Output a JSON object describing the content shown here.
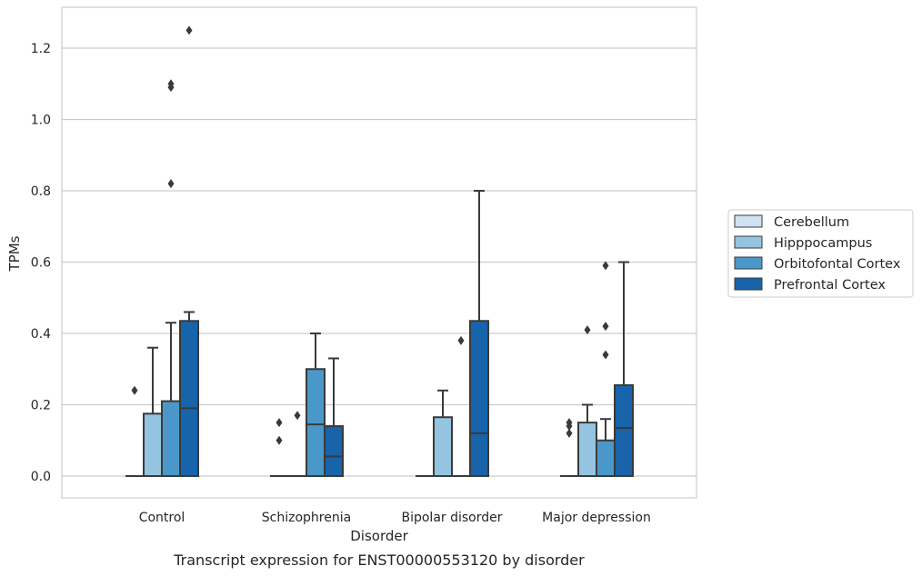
{
  "caption": "Transcript expression for ENST00000553120 by disorder",
  "chart_data": {
    "type": "box",
    "title": "",
    "xlabel": "Disorder",
    "ylabel": "TPMs",
    "ylim": [
      -0.06,
      1.32
    ],
    "yticks": [
      0.0,
      0.2,
      0.4,
      0.6,
      0.8,
      1.0,
      1.2
    ],
    "ytick_labels": [
      "0.0",
      "0.2",
      "0.4",
      "0.6",
      "0.8",
      "1.0",
      "1.2"
    ],
    "grid": "horizontal",
    "legend_position": "right",
    "categories": [
      "Control",
      "Schizophrenia",
      "Bipolar disorder",
      "Major depression"
    ],
    "series": [
      {
        "name": "Cerebellum",
        "color": "#d0e1f2",
        "boxes": [
          {
            "whislo": 0.0,
            "q1": 0.0,
            "med": 0.0,
            "q3": 0.0,
            "whishi": 0.0,
            "fliers": [
              0.24
            ]
          },
          {
            "whislo": 0.0,
            "q1": 0.0,
            "med": 0.0,
            "q3": 0.0,
            "whishi": 0.0,
            "fliers": [
              0.1,
              0.15
            ]
          },
          {
            "whislo": 0.0,
            "q1": 0.0,
            "med": 0.0,
            "q3": 0.0,
            "whishi": 0.0,
            "fliers": []
          },
          {
            "whislo": 0.0,
            "q1": 0.0,
            "med": 0.0,
            "q3": 0.0,
            "whishi": 0.0,
            "fliers": [
              0.12,
              0.14,
              0.15
            ]
          }
        ]
      },
      {
        "name": "Hipppocampus",
        "color": "#94c4df",
        "boxes": [
          {
            "whislo": 0.0,
            "q1": 0.0,
            "med": 0.0,
            "q3": 0.175,
            "whishi": 0.36,
            "fliers": []
          },
          {
            "whislo": 0.0,
            "q1": 0.0,
            "med": 0.0,
            "q3": 0.0,
            "whishi": 0.0,
            "fliers": [
              0.17
            ]
          },
          {
            "whislo": 0.0,
            "q1": 0.0,
            "med": 0.0,
            "q3": 0.165,
            "whishi": 0.24,
            "fliers": []
          },
          {
            "whislo": 0.0,
            "q1": 0.0,
            "med": 0.0,
            "q3": 0.15,
            "whishi": 0.2,
            "fliers": [
              0.41
            ]
          }
        ]
      },
      {
        "name": "Orbitofontal Cortex",
        "color": "#4a98c9",
        "boxes": [
          {
            "whislo": 0.0,
            "q1": 0.0,
            "med": 0.0,
            "q3": 0.21,
            "whishi": 0.43,
            "fliers": [
              0.82,
              1.09,
              1.1
            ]
          },
          {
            "whislo": 0.0,
            "q1": 0.0,
            "med": 0.145,
            "q3": 0.3,
            "whishi": 0.4,
            "fliers": []
          },
          {
            "whislo": 0.0,
            "q1": 0.0,
            "med": 0.0,
            "q3": 0.0,
            "whishi": 0.0,
            "fliers": [
              0.38
            ]
          },
          {
            "whislo": 0.0,
            "q1": 0.0,
            "med": 0.0,
            "q3": 0.1,
            "whishi": 0.16,
            "fliers": [
              0.34,
              0.42,
              0.59
            ]
          }
        ]
      },
      {
        "name": "Prefrontal Cortex",
        "color": "#1764ab",
        "boxes": [
          {
            "whislo": 0.0,
            "q1": 0.0,
            "med": 0.19,
            "q3": 0.435,
            "whishi": 0.46,
            "fliers": [
              1.25
            ]
          },
          {
            "whislo": 0.0,
            "q1": 0.0,
            "med": 0.055,
            "q3": 0.14,
            "whishi": 0.33,
            "fliers": []
          },
          {
            "whislo": 0.0,
            "q1": 0.0,
            "med": 0.12,
            "q3": 0.435,
            "whishi": 0.8,
            "fliers": []
          },
          {
            "whislo": 0.0,
            "q1": 0.0,
            "med": 0.135,
            "q3": 0.255,
            "whishi": 0.6,
            "fliers": []
          }
        ]
      }
    ]
  }
}
